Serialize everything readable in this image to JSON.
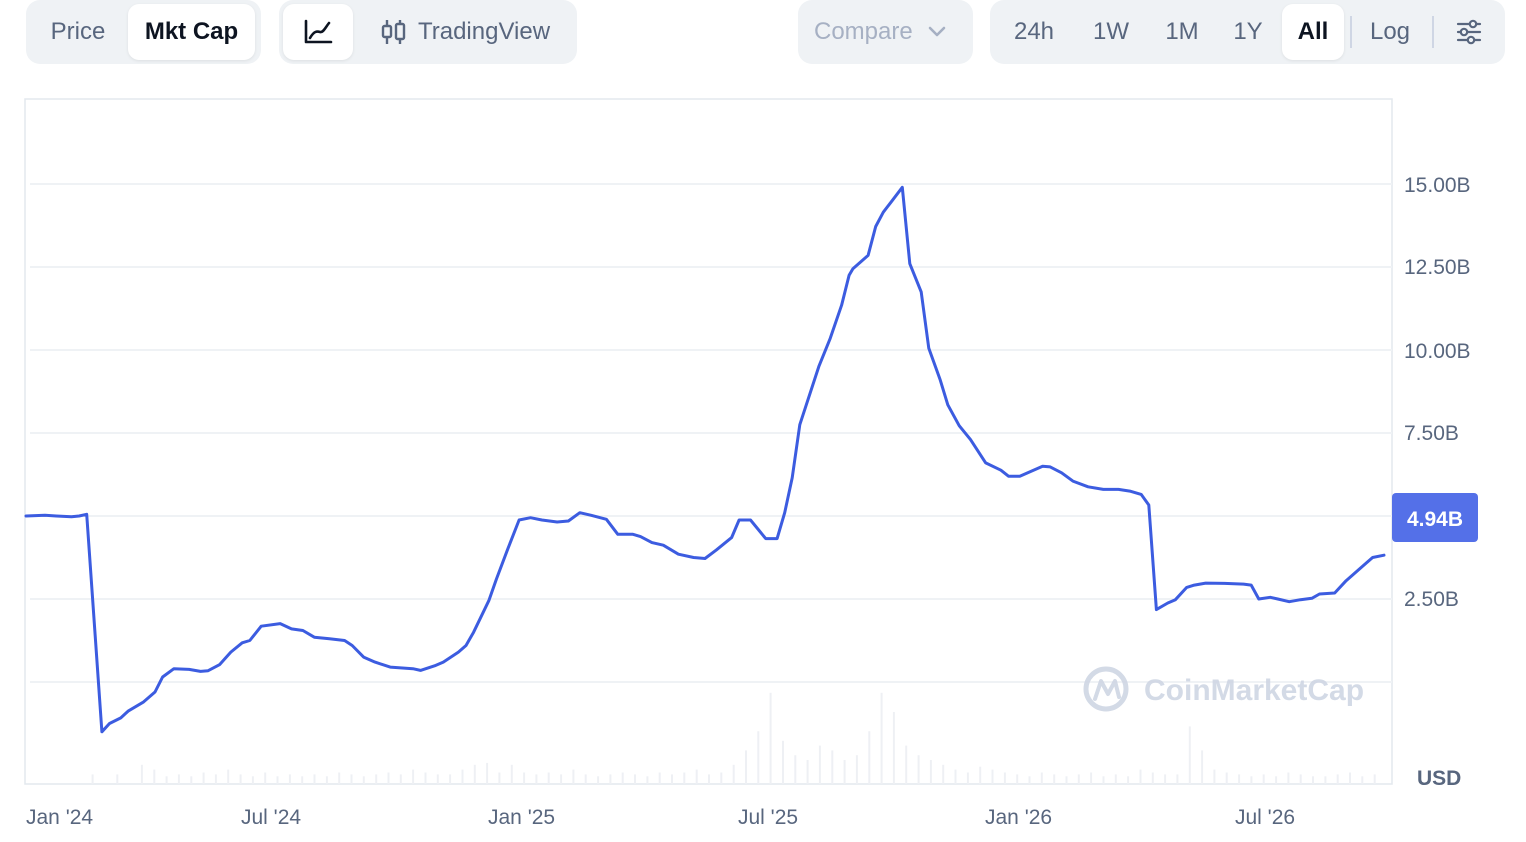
{
  "toolbar": {
    "view_tabs": [
      {
        "label": "Price",
        "active": false
      },
      {
        "label": "Mkt Cap",
        "active": true
      }
    ],
    "chart_style": {
      "line_icon": "line-chart-icon",
      "candle_icon": "candlestick-icon",
      "tradingview_label": "TradingView"
    },
    "compare": {
      "label": "Compare",
      "icon": "chevron-down-icon"
    },
    "ranges": [
      {
        "label": "24h",
        "active": false
      },
      {
        "label": "1W",
        "active": false
      },
      {
        "label": "1M",
        "active": false
      },
      {
        "label": "1Y",
        "active": false
      },
      {
        "label": "All",
        "active": true
      }
    ],
    "log_label": "Log",
    "settings_icon": "sliders-icon"
  },
  "watermark": {
    "text": "CoinMarketCap",
    "icon": "coinmarketcap-logo-icon"
  },
  "colors": {
    "line": "#3c5ce0",
    "badge_bg": "#5470e8",
    "grid": "#eff2f5"
  },
  "chart_data": {
    "type": "line",
    "x_tick_labels": [
      "Jan '24",
      "Jul '24",
      "Jan '25",
      "Jul '25",
      "Jan '26",
      "Jul '26"
    ],
    "y_tick_labels": [
      "15.00B",
      "12.50B",
      "10.00B",
      "7.50B",
      "2.50B"
    ],
    "currency_label": "USD",
    "current_value_label": "4.94B",
    "ylim": [
      -3.0,
      17.5
    ],
    "grid": true,
    "series": [
      {
        "values": [
          [
            2023.92,
            5.0
          ],
          [
            2023.97,
            5.02
          ],
          [
            2024.0,
            5.0
          ],
          [
            2024.04,
            4.98
          ],
          [
            2024.06,
            5.0
          ],
          [
            2024.08,
            5.05
          ],
          [
            2024.12,
            -1.5
          ],
          [
            2024.14,
            -1.25
          ],
          [
            2024.17,
            -1.08
          ],
          [
            2024.19,
            -0.87
          ],
          [
            2024.23,
            -0.6
          ],
          [
            2024.26,
            -0.3
          ],
          [
            2024.28,
            0.15
          ],
          [
            2024.31,
            0.4
          ],
          [
            2024.35,
            0.38
          ],
          [
            2024.38,
            0.32
          ],
          [
            2024.4,
            0.34
          ],
          [
            2024.43,
            0.52
          ],
          [
            2024.46,
            0.9
          ],
          [
            2024.49,
            1.18
          ],
          [
            2024.51,
            1.25
          ],
          [
            2024.54,
            1.68
          ],
          [
            2024.59,
            1.76
          ],
          [
            2024.62,
            1.6
          ],
          [
            2024.65,
            1.55
          ],
          [
            2024.68,
            1.35
          ],
          [
            2024.72,
            1.3
          ],
          [
            2024.76,
            1.25
          ],
          [
            2024.78,
            1.1
          ],
          [
            2024.81,
            0.75
          ],
          [
            2024.84,
            0.6
          ],
          [
            2024.88,
            0.45
          ],
          [
            2024.94,
            0.4
          ],
          [
            2024.96,
            0.35
          ],
          [
            2025.0,
            0.5
          ],
          [
            2025.02,
            0.6
          ],
          [
            2025.06,
            0.9
          ],
          [
            2025.08,
            1.1
          ],
          [
            2025.1,
            1.5
          ],
          [
            2025.14,
            2.45
          ],
          [
            2025.16,
            3.1
          ],
          [
            2025.19,
            4.0
          ],
          [
            2025.22,
            4.88
          ],
          [
            2025.25,
            4.95
          ],
          [
            2025.28,
            4.88
          ],
          [
            2025.32,
            4.82
          ],
          [
            2025.35,
            4.85
          ],
          [
            2025.38,
            5.1
          ],
          [
            2025.41,
            5.02
          ],
          [
            2025.45,
            4.9
          ],
          [
            2025.48,
            4.45
          ],
          [
            2025.52,
            4.45
          ],
          [
            2025.54,
            4.38
          ],
          [
            2025.57,
            4.2
          ],
          [
            2025.6,
            4.12
          ],
          [
            2025.64,
            3.85
          ],
          [
            2025.68,
            3.75
          ],
          [
            2025.71,
            3.72
          ],
          [
            2025.74,
            3.98
          ],
          [
            2025.78,
            4.35
          ],
          [
            2025.8,
            4.88
          ],
          [
            2025.83,
            4.88
          ],
          [
            2025.87,
            4.32
          ],
          [
            2025.9,
            4.32
          ],
          [
            2025.92,
            5.1
          ],
          [
            2025.94,
            6.15
          ],
          [
            2025.96,
            7.75
          ],
          [
            2026.01,
            9.5
          ],
          [
            2026.04,
            10.35
          ],
          [
            2026.07,
            11.35
          ],
          [
            2026.09,
            12.25
          ],
          [
            2026.1,
            12.45
          ],
          [
            2026.14,
            12.85
          ],
          [
            2026.16,
            13.72
          ],
          [
            2026.18,
            14.15
          ],
          [
            2026.2,
            14.45
          ],
          [
            2026.23,
            14.9
          ],
          [
            2026.25,
            12.6
          ],
          [
            2026.28,
            11.75
          ],
          [
            2026.3,
            10.05
          ],
          [
            2026.33,
            9.1
          ],
          [
            2026.35,
            8.35
          ],
          [
            2026.38,
            7.72
          ],
          [
            2026.41,
            7.3
          ],
          [
            2026.45,
            6.6
          ],
          [
            2026.49,
            6.38
          ],
          [
            2026.51,
            6.2
          ],
          [
            2026.54,
            6.2
          ],
          [
            2026.57,
            6.35
          ],
          [
            2026.6,
            6.5
          ],
          [
            2026.62,
            6.48
          ],
          [
            2026.65,
            6.3
          ],
          [
            2026.68,
            6.05
          ],
          [
            2026.72,
            5.88
          ],
          [
            2026.76,
            5.8
          ],
          [
            2026.8,
            5.8
          ],
          [
            2026.83,
            5.75
          ],
          [
            2026.86,
            5.65
          ],
          [
            2026.88,
            5.33
          ],
          [
            2026.9,
            2.18
          ],
          [
            2026.93,
            2.38
          ],
          [
            2026.95,
            2.48
          ],
          [
            2026.98,
            2.85
          ],
          [
            2027.0,
            2.92
          ],
          [
            2027.03,
            2.98
          ],
          [
            2027.08,
            2.97
          ],
          [
            2027.13,
            2.95
          ],
          [
            2027.15,
            2.92
          ],
          [
            2027.17,
            2.5
          ],
          [
            2027.2,
            2.55
          ],
          [
            2027.22,
            2.5
          ],
          [
            2027.25,
            2.42
          ],
          [
            2027.28,
            2.48
          ],
          [
            2027.31,
            2.52
          ],
          [
            2027.33,
            2.65
          ],
          [
            2027.37,
            2.68
          ],
          [
            2027.4,
            3.05
          ],
          [
            2027.45,
            3.55
          ],
          [
            2027.47,
            3.75
          ],
          [
            2027.5,
            3.82
          ]
        ]
      }
    ],
    "volume_values": [
      0,
      0,
      0,
      0,
      0,
      0.1,
      0,
      0.1,
      0,
      0.2,
      0.15,
      0.08,
      0.1,
      0.08,
      0.12,
      0.1,
      0.15,
      0.1,
      0.08,
      0.12,
      0.08,
      0.1,
      0.08,
      0.1,
      0.08,
      0.12,
      0.1,
      0.08,
      0.1,
      0.12,
      0.1,
      0.15,
      0.12,
      0.1,
      0.1,
      0.15,
      0.2,
      0.22,
      0.12,
      0.2,
      0.12,
      0.1,
      0.12,
      0.1,
      0.15,
      0.1,
      0.08,
      0.1,
      0.12,
      0.1,
      0.08,
      0.12,
      0.1,
      0.12,
      0.15,
      0.1,
      0.12,
      0.2,
      0.35,
      0.55,
      0.95,
      0.45,
      0.3,
      0.25,
      0.4,
      0.35,
      0.25,
      0.3,
      0.55,
      0.95,
      0.75,
      0.4,
      0.3,
      0.25,
      0.2,
      0.15,
      0.12,
      0.18,
      0.15,
      0.12,
      0.1,
      0.08,
      0.12,
      0.1,
      0.08,
      0.1,
      0.12,
      0.08,
      0.1,
      0.08,
      0.15,
      0.12,
      0.1,
      0.1,
      0.6,
      0.35,
      0.15,
      0.12,
      0.1,
      0.08,
      0.1,
      0.08,
      0.12,
      0.1,
      0.08,
      0.08,
      0.1,
      0.12,
      0.08,
      0.1
    ]
  }
}
